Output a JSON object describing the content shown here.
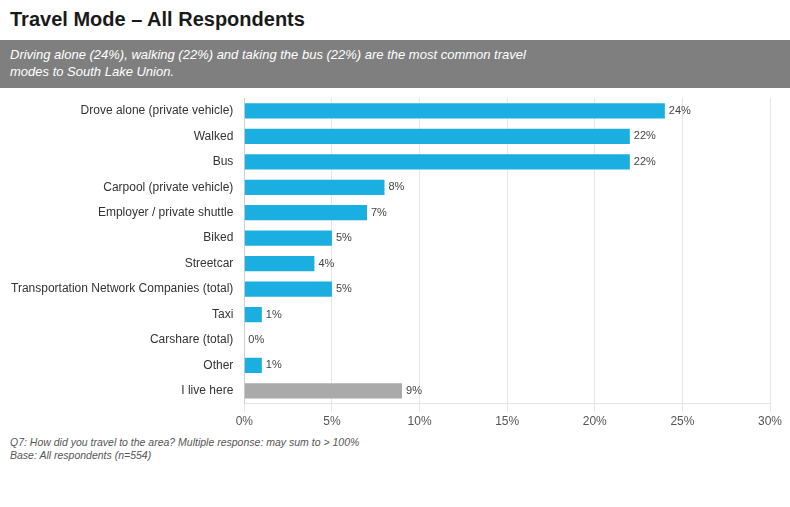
{
  "chart_data": {
    "type": "bar",
    "orientation": "horizontal",
    "title": "Travel Mode – All Respondents",
    "subtitle": "Driving alone (24%), walking (22%) and taking the bus (22%) are the most common travel\nmodes to South Lake Union.",
    "footnote": "Q7: How did you travel to the area?  Multiple response: may sum to > 100%\nBase: All respondents (n=554)",
    "categories": [
      "I live here",
      "Other",
      "Carshare (total)",
      "Taxi",
      "Transportation Network Companies (total)",
      "Streetcar",
      "Biked",
      "Employer / private shuttle",
      "Carpool (private vehicle)",
      "Bus",
      "Walked",
      "Drove alone (private vehicle)"
    ],
    "values": [
      9,
      1,
      0,
      1,
      5,
      4,
      5,
      7,
      8,
      22,
      22,
      24
    ],
    "value_labels": [
      "9%",
      "1%",
      "0%",
      "1%",
      "5%",
      "4%",
      "5%",
      "7%",
      "8%",
      "22%",
      "22%",
      "24%"
    ],
    "data_labels": true,
    "colors": [
      "#aaaaaa",
      "#1aafe0",
      "#1aafe0",
      "#1aafe0",
      "#1aafe0",
      "#1aafe0",
      "#1aafe0",
      "#1aafe0",
      "#1aafe0",
      "#1aafe0",
      "#1aafe0",
      "#1aafe0"
    ],
    "xlim": [
      0,
      30
    ],
    "xticks": [
      {
        "value": 0,
        "label": "0%"
      },
      {
        "value": 5,
        "label": "5%"
      },
      {
        "value": 10,
        "label": "10%"
      },
      {
        "value": 15,
        "label": "15%"
      },
      {
        "value": 20,
        "label": "20%"
      },
      {
        "value": 25,
        "label": "25%"
      },
      {
        "value": 30,
        "label": "30%"
      }
    ],
    "grid": true
  }
}
